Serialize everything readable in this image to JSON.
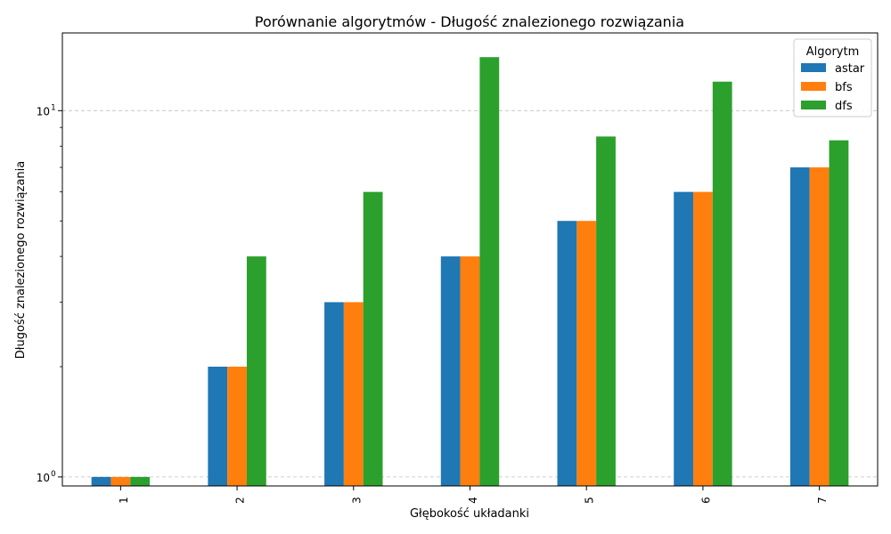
{
  "chart_data": {
    "type": "bar",
    "title": "Porównanie algorytmów - Długość znalezionego rozwiązania",
    "xlabel": "Głębokość układanki",
    "ylabel": "Długość znalezionego rozwiązania",
    "yscale": "log",
    "ylim": [
      0.945,
      16.3
    ],
    "yticks": [
      {
        "value": 1,
        "base": "10",
        "exp": "0"
      },
      {
        "value": 10,
        "base": "10",
        "exp": "1"
      }
    ],
    "grid": {
      "axis": "y",
      "style": "dashed"
    },
    "categories": [
      "1",
      "2",
      "3",
      "4",
      "5",
      "6",
      "7"
    ],
    "series": [
      {
        "name": "astar",
        "color": "#1f77b4",
        "values": [
          1,
          2,
          3,
          4,
          5,
          6,
          7
        ]
      },
      {
        "name": "bfs",
        "color": "#ff7f0e",
        "values": [
          1,
          2,
          3,
          4,
          5,
          6,
          7
        ]
      },
      {
        "name": "dfs",
        "color": "#2ca02c",
        "values": [
          1,
          4,
          6,
          14,
          8.5,
          12,
          8.3
        ]
      }
    ],
    "legend": {
      "title": "Algorytm",
      "position": "top-right"
    }
  }
}
